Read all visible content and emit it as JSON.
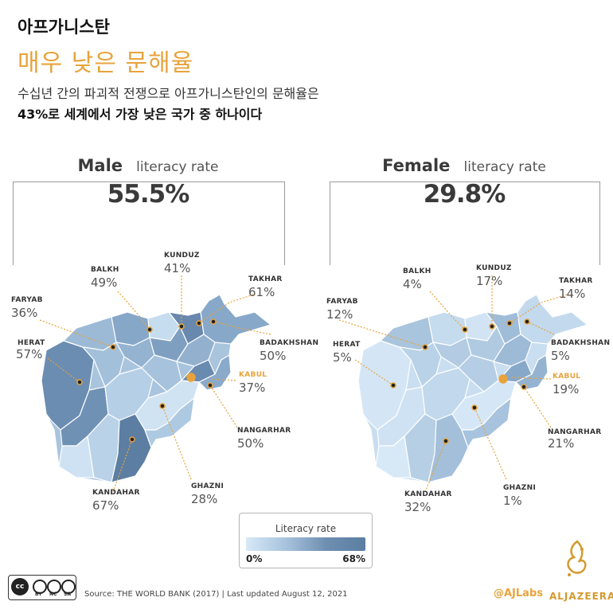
{
  "header": {
    "kicker": "아프가니스탄",
    "title": "매우 낮은 문해율",
    "subtitle_line1": "수십년 간의 파괴적 전쟁으로 아프가니스탄인의 문해율은",
    "subtitle_line2": "43%로 세계에서 가장 낮은 국가 중 하나이다"
  },
  "panels": [
    {
      "gender": "Male",
      "label": "literacy rate",
      "rate": "55.5%",
      "provinces": [
        {
          "name": "BALKH",
          "value": "49%"
        },
        {
          "name": "KUNDUZ",
          "value": "41%"
        },
        {
          "name": "TAKHAR",
          "value": "61%"
        },
        {
          "name": "FARYAB",
          "value": "36%"
        },
        {
          "name": "BADAKHSHAN",
          "value": "50%"
        },
        {
          "name": "HERAT",
          "value": "57%"
        },
        {
          "name": "KABUL",
          "value": "37%"
        },
        {
          "name": "NANGARHAR",
          "value": "50%"
        },
        {
          "name": "GHAZNI",
          "value": "28%"
        },
        {
          "name": "KANDAHAR",
          "value": "67%"
        }
      ]
    },
    {
      "gender": "Female",
      "label": "literacy rate",
      "rate": "29.8%",
      "provinces": [
        {
          "name": "BALKH",
          "value": "4%"
        },
        {
          "name": "KUNDUZ",
          "value": "17%"
        },
        {
          "name": "TAKHAR",
          "value": "14%"
        },
        {
          "name": "FARYAB",
          "value": "12%"
        },
        {
          "name": "BADAKHSHAN",
          "value": "5%"
        },
        {
          "name": "HERAT",
          "value": "5%"
        },
        {
          "name": "KABUL",
          "value": "19%"
        },
        {
          "name": "NANGARHAR",
          "value": "21%"
        },
        {
          "name": "GHAZNI",
          "value": "1%"
        },
        {
          "name": "KANDAHAR",
          "value": "32%"
        }
      ]
    }
  ],
  "legend": {
    "title": "Literacy rate",
    "min": "0%",
    "max": "68%"
  },
  "license": {
    "cc": "cc",
    "by": "BY",
    "nc": "NC",
    "sa": "SA"
  },
  "footer": {
    "source": "Source: THE WORLD BANK (2017) | Last updated August 12, 2021",
    "handle": "@AJLabs",
    "brand": "ALJAZEERA"
  },
  "colors": {
    "accent": "#e8a33c",
    "dark": "#5b7ea1",
    "light": "#d7e9f7"
  }
}
